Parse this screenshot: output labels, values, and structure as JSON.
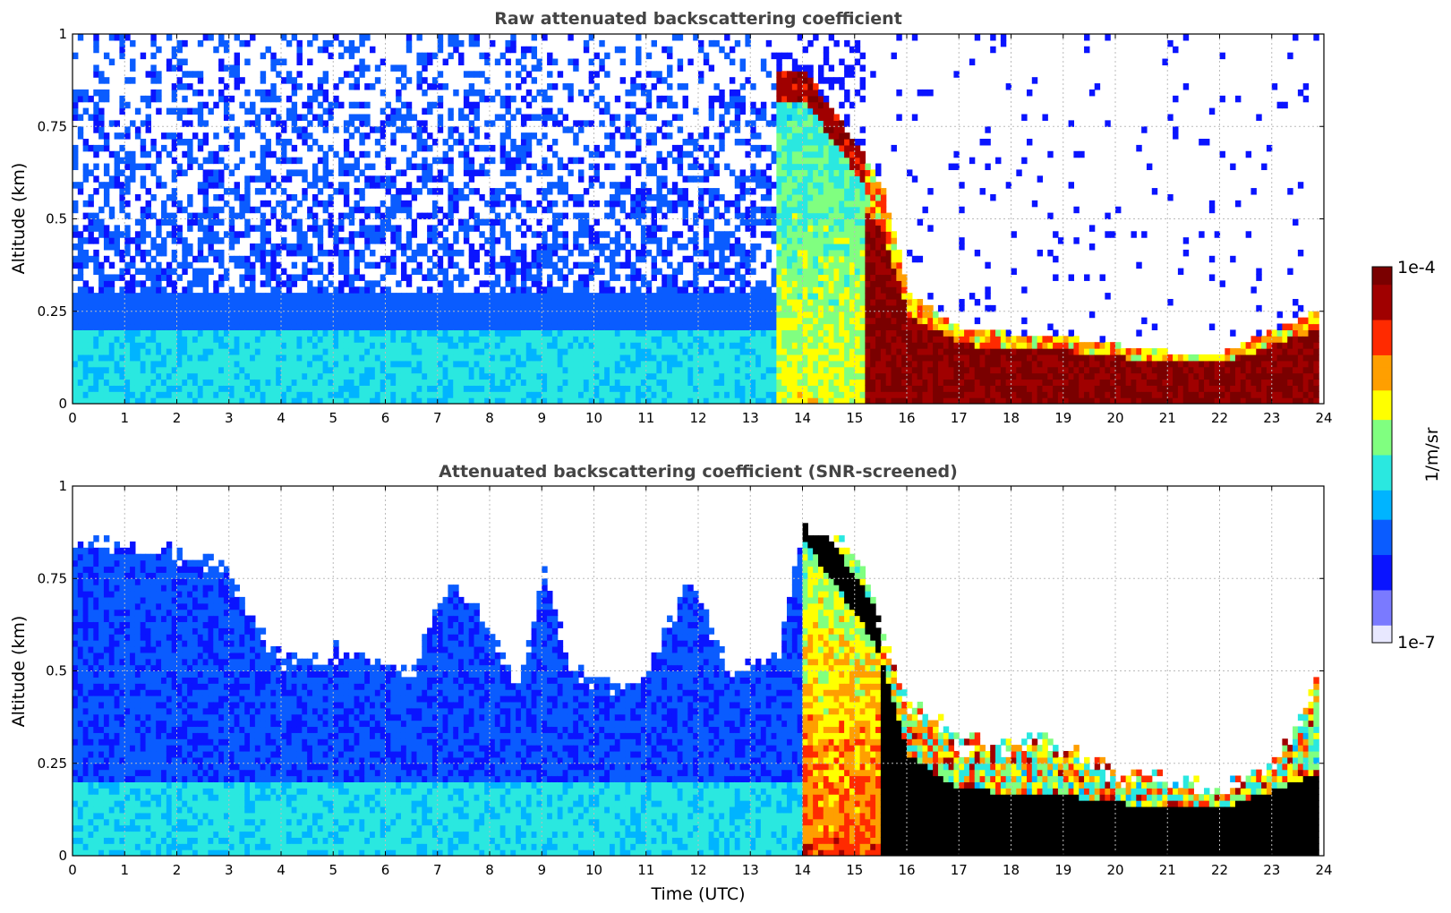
{
  "colors": {
    "colormap": [
      "#e8e8ff",
      "#7a7aff",
      "#0a14ff",
      "#0a5cff",
      "#00b4ff",
      "#2ae8e0",
      "#80ff80",
      "#ffff00",
      "#ff9f00",
      "#ff2a00",
      "#a00000",
      "#7a0000"
    ],
    "screened_saturation": "#000000",
    "grid": "#bbbbbb"
  },
  "chart_data": [
    {
      "type": "heatmap",
      "title": "Raw attenuated backscattering coefficient",
      "xlabel": "",
      "ylabel": "Altitude (km)",
      "xlim": [
        0,
        24
      ],
      "ylim": [
        0,
        1
      ],
      "x_ticks": [
        "0",
        "1",
        "2",
        "3",
        "4",
        "5",
        "6",
        "7",
        "8",
        "9",
        "10",
        "11",
        "12",
        "13",
        "14",
        "15",
        "16",
        "17",
        "18",
        "19",
        "20",
        "21",
        "22",
        "23",
        "24"
      ],
      "y_ticks": [
        "0",
        "0.25",
        "0.5",
        "0.75",
        "1"
      ],
      "grid": true,
      "data_end_time": 23.8,
      "layer_top_km": [
        [
          0,
          0.24
        ],
        [
          13.5,
          0.9
        ],
        [
          14,
          0.9
        ],
        [
          15,
          0.7
        ],
        [
          15.5,
          0.58
        ],
        [
          16,
          0.3
        ],
        [
          17,
          0.2
        ],
        [
          19,
          0.18
        ],
        [
          21,
          0.14
        ],
        [
          22,
          0.14
        ],
        [
          23,
          0.2
        ],
        [
          23.8,
          0.25
        ]
      ],
      "features": [
        "weak noisy blue background 0-13.5 UTC",
        "boundary layer aerosol (cyan) below 0.2 km before 15 UTC",
        "strong backscatter descending from 1 km at 13.8 UTC to surface by 16 UTC",
        "saturated low layer 0-0.2 km from 16 to 23.8 UTC"
      ]
    },
    {
      "type": "heatmap",
      "title": "Attenuated backscattering coefficient (SNR-screened)",
      "xlabel": "Time (UTC)",
      "ylabel": "Altitude (km)",
      "xlim": [
        0,
        24
      ],
      "ylim": [
        0,
        1
      ],
      "x_ticks": [
        "0",
        "1",
        "2",
        "3",
        "4",
        "5",
        "6",
        "7",
        "8",
        "9",
        "10",
        "11",
        "12",
        "13",
        "14",
        "15",
        "16",
        "17",
        "18",
        "19",
        "20",
        "21",
        "22",
        "23",
        "24"
      ],
      "y_ticks": [
        "0",
        "0.25",
        "0.5",
        "0.75",
        "1"
      ],
      "grid": true,
      "data_end_time": 23.8,
      "screened_top_km": [
        [
          0,
          0.85
        ],
        [
          2.5,
          0.8
        ],
        [
          3,
          0.75
        ],
        [
          3.5,
          0.6
        ],
        [
          4,
          0.52
        ],
        [
          5,
          0.55
        ],
        [
          6.5,
          0.5
        ],
        [
          7.2,
          0.75
        ],
        [
          8,
          0.6
        ],
        [
          8.5,
          0.45
        ],
        [
          9,
          0.75
        ],
        [
          9.5,
          0.5
        ],
        [
          10.5,
          0.45
        ],
        [
          11,
          0.5
        ],
        [
          11.8,
          0.75
        ],
        [
          12.5,
          0.5
        ],
        [
          13.5,
          0.55
        ],
        [
          14,
          0.9
        ],
        [
          15,
          0.8
        ],
        [
          15.5,
          0.6
        ],
        [
          16,
          0.4
        ],
        [
          16.5,
          0.38
        ],
        [
          17,
          0.3
        ],
        [
          19,
          0.3
        ],
        [
          20,
          0.22
        ],
        [
          21,
          0.2
        ],
        [
          22,
          0.18
        ],
        [
          23,
          0.25
        ],
        [
          23.8,
          0.45
        ]
      ],
      "features": [
        "noise removed above screened top",
        "saturated (black) values within low layer after 15.5 UTC"
      ]
    }
  ],
  "colorbar": {
    "max_label": "1e-4",
    "min_label": "1e-7",
    "label": "1/m/sr",
    "range": [
      1e-07,
      0.0001
    ],
    "scale": "log"
  }
}
